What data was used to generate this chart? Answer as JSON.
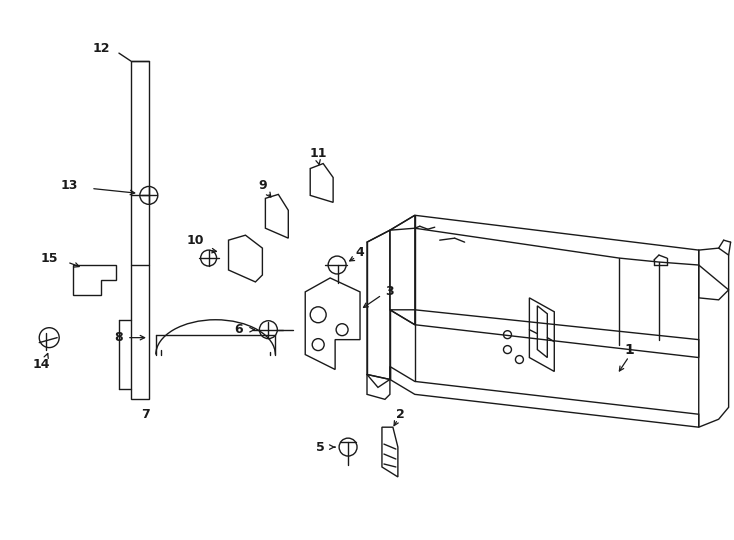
{
  "bg_color": "#ffffff",
  "line_color": "#1a1a1a",
  "figsize": [
    7.34,
    5.4
  ],
  "dpi": 100,
  "lw": 1.0
}
